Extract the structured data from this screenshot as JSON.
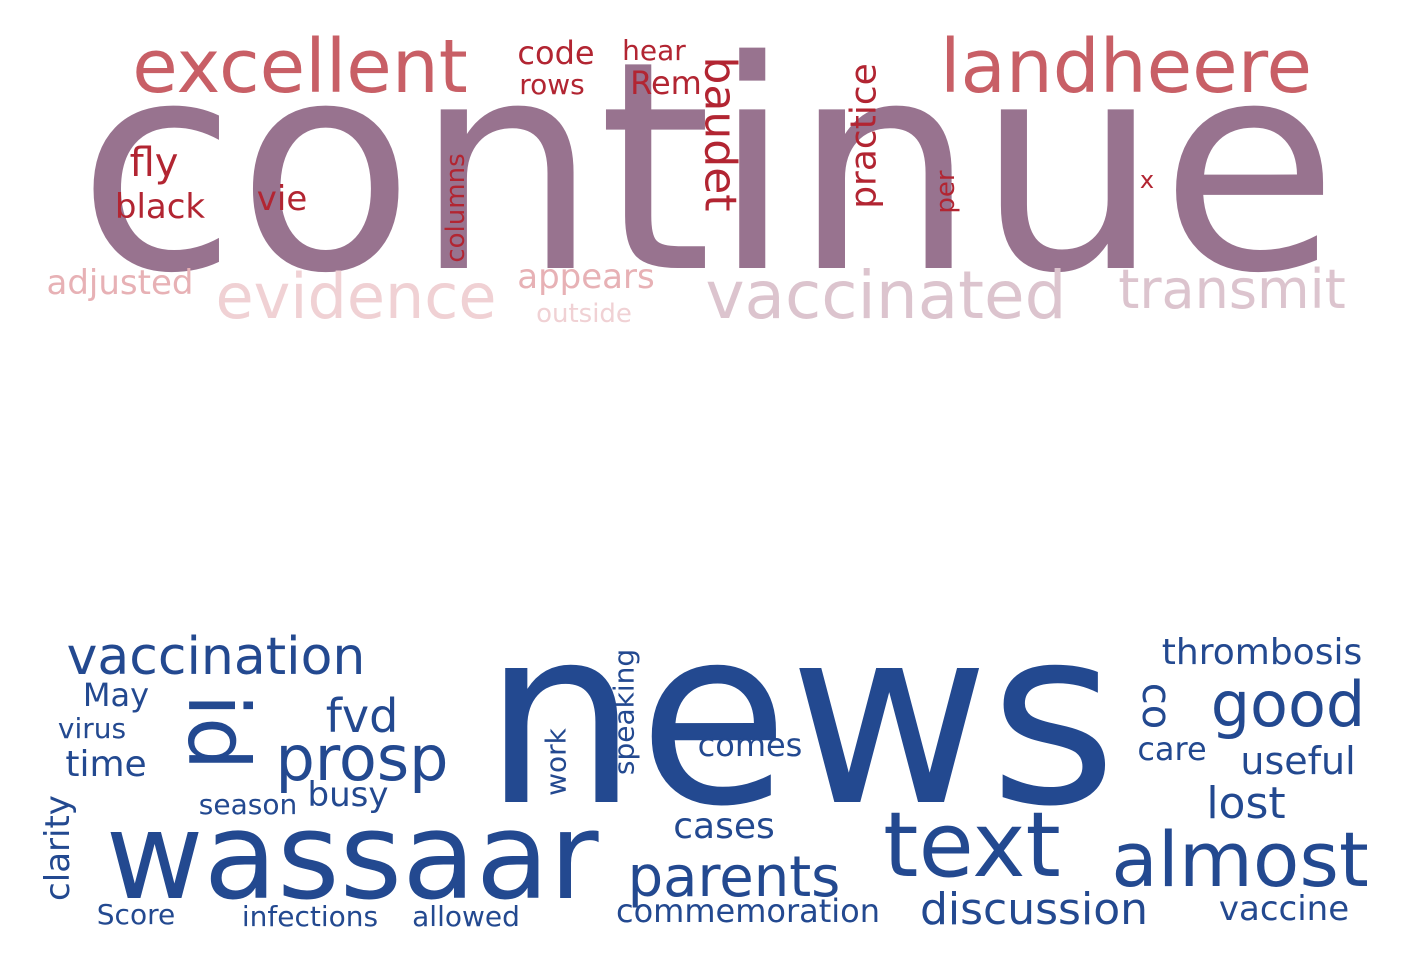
{
  "clouds": [
    {
      "id": "top",
      "words": [
        {
          "text": "continue",
          "color": "#98738f"
        },
        {
          "text": "excellent",
          "color": "#c85f66"
        },
        {
          "text": "landheere",
          "color": "#c85f66"
        },
        {
          "text": "code",
          "color": "#b22532"
        },
        {
          "text": "rows",
          "color": "#b22532"
        },
        {
          "text": "hear",
          "color": "#b22532"
        },
        {
          "text": "Rem",
          "color": "#b22532"
        },
        {
          "text": "baudet",
          "color": "#b22532"
        },
        {
          "text": "practice",
          "color": "#b22532"
        },
        {
          "text": "fly",
          "color": "#b22532"
        },
        {
          "text": "black",
          "color": "#b22532"
        },
        {
          "text": "vie",
          "color": "#b22532"
        },
        {
          "text": "columns",
          "color": "#b22532"
        },
        {
          "text": "per",
          "color": "#b22532"
        },
        {
          "text": "x",
          "color": "#b22532"
        },
        {
          "text": "adjusted",
          "color": "#e7b1b5"
        },
        {
          "text": "evidence",
          "color": "#f0d1d4"
        },
        {
          "text": "appears",
          "color": "#e7b1b5"
        },
        {
          "text": "outside",
          "color": "#f0d1d4"
        },
        {
          "text": "vaccinated",
          "color": "#dcc4ce"
        },
        {
          "text": "transmit",
          "color": "#dcc4ce"
        }
      ]
    },
    {
      "id": "bottom",
      "words": [
        {
          "text": "news",
          "color": "#234990"
        },
        {
          "text": "wassaar",
          "color": "#234990"
        },
        {
          "text": "vaccination",
          "color": "#234990"
        },
        {
          "text": "id",
          "color": "#234990"
        },
        {
          "text": "May",
          "color": "#234990"
        },
        {
          "text": "virus",
          "color": "#234990"
        },
        {
          "text": "time",
          "color": "#234990"
        },
        {
          "text": "prosp",
          "color": "#234990"
        },
        {
          "text": "fvd",
          "color": "#234990"
        },
        {
          "text": "season",
          "color": "#234990"
        },
        {
          "text": "busy",
          "color": "#234990"
        },
        {
          "text": "clarity",
          "color": "#234990"
        },
        {
          "text": "Score",
          "color": "#234990"
        },
        {
          "text": "infections",
          "color": "#234990"
        },
        {
          "text": "allowed",
          "color": "#234990"
        },
        {
          "text": "work",
          "color": "#234990"
        },
        {
          "text": "speaking",
          "color": "#234990"
        },
        {
          "text": "comes",
          "color": "#234990"
        },
        {
          "text": "cases",
          "color": "#234990"
        },
        {
          "text": "parents",
          "color": "#234990"
        },
        {
          "text": "commemoration",
          "color": "#234990"
        },
        {
          "text": "text",
          "color": "#234990"
        },
        {
          "text": "discussion",
          "color": "#234990"
        },
        {
          "text": "co",
          "color": "#234990"
        },
        {
          "text": "thrombosis",
          "color": "#234990"
        },
        {
          "text": "good",
          "color": "#234990"
        },
        {
          "text": "care",
          "color": "#234990"
        },
        {
          "text": "useful",
          "color": "#234990"
        },
        {
          "text": "lost",
          "color": "#234990"
        },
        {
          "text": "almost",
          "color": "#234990"
        },
        {
          "text": "vaccine",
          "color": "#234990"
        }
      ]
    }
  ]
}
